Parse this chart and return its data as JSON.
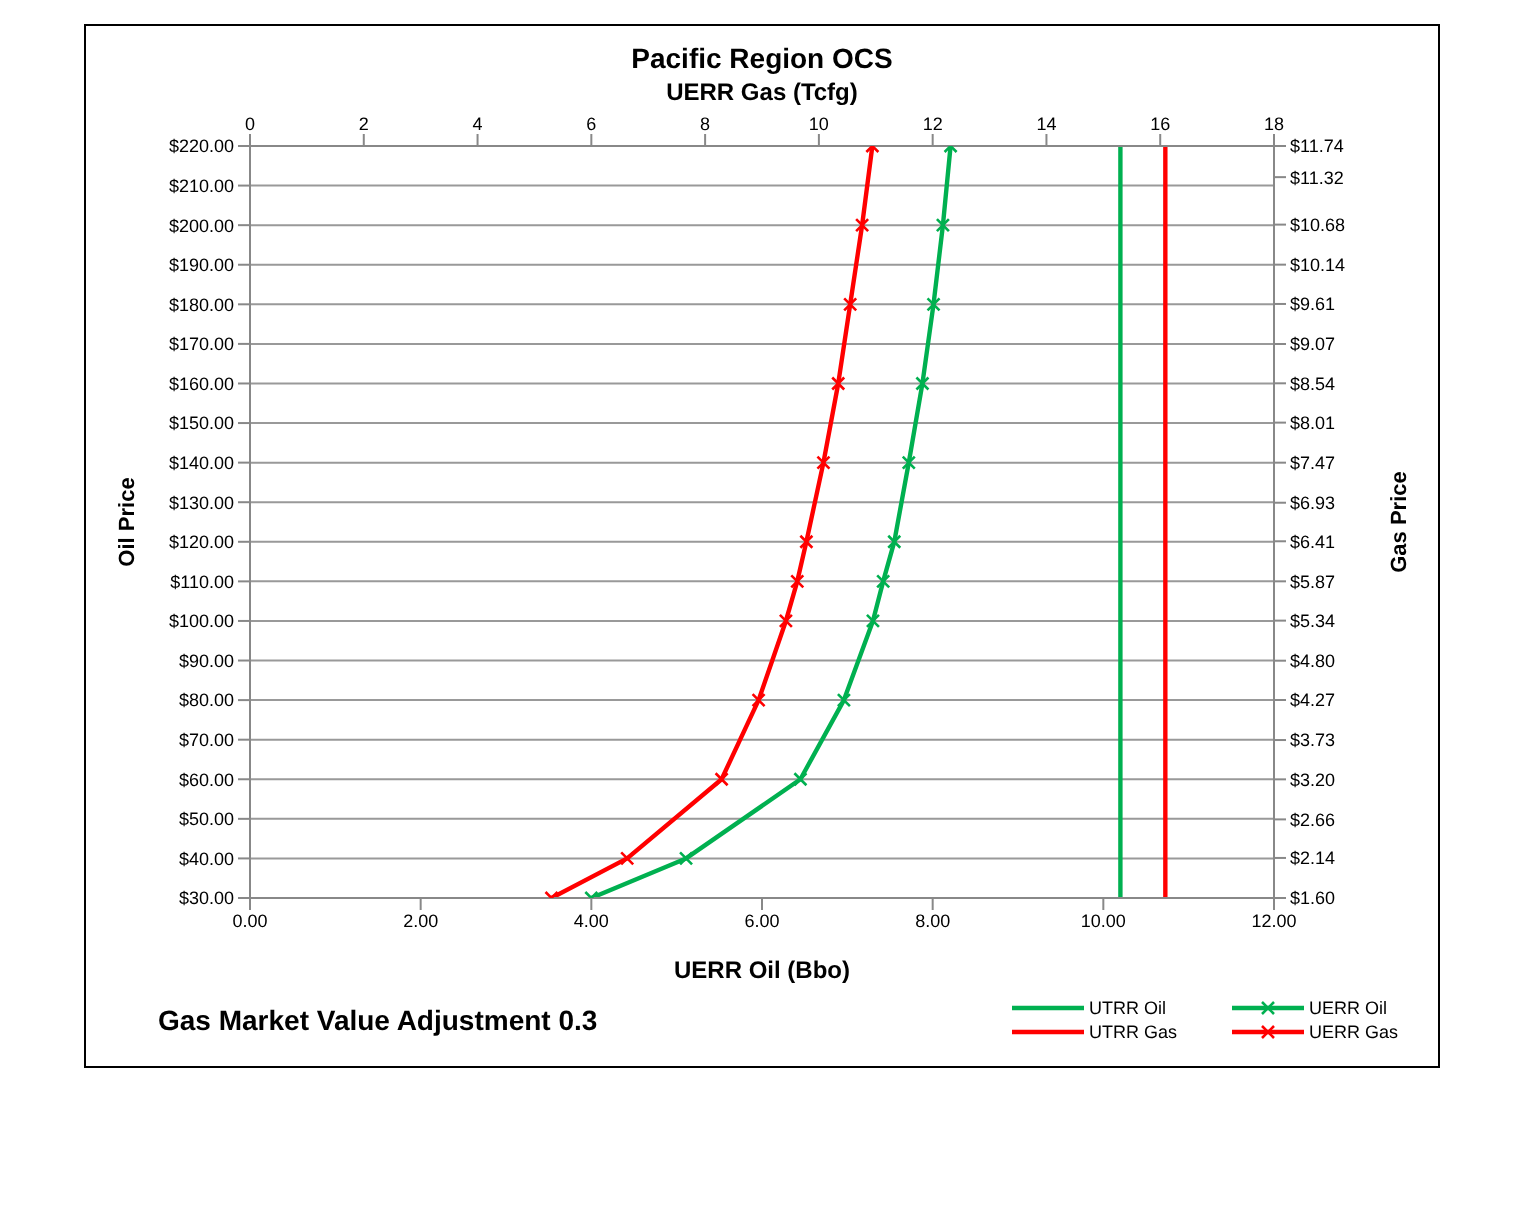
{
  "chart_data": {
    "type": "line",
    "title": "Pacific Region OCS",
    "xlabel": "UERR Oil (Bbo)",
    "x2label": "UERR Gas (Tcfg)",
    "ylabel": "Oil Price",
    "y2label": "Gas Price",
    "annotations": [
      "Gas Market Value Adjustment 0.3"
    ],
    "xlim": [
      0,
      12
    ],
    "xticks": [
      {
        "value": 0,
        "label": "0.00"
      },
      {
        "value": 2,
        "label": "2.00"
      },
      {
        "value": 4,
        "label": "4.00"
      },
      {
        "value": 6,
        "label": "6.00"
      },
      {
        "value": 8,
        "label": "8.00"
      },
      {
        "value": 10,
        "label": "10.00"
      },
      {
        "value": 12,
        "label": "12.00"
      }
    ],
    "x2lim": [
      0,
      18
    ],
    "x2ticks": [
      0,
      2,
      4,
      6,
      8,
      10,
      12,
      14,
      16,
      18
    ],
    "ylim": [
      30,
      220
    ],
    "yticks": [
      {
        "value": 30,
        "label": "$30.00"
      },
      {
        "value": 40,
        "label": "$40.00"
      },
      {
        "value": 50,
        "label": "$50.00"
      },
      {
        "value": 60,
        "label": "$60.00"
      },
      {
        "value": 70,
        "label": "$70.00"
      },
      {
        "value": 80,
        "label": "$80.00"
      },
      {
        "value": 90,
        "label": "$90.00"
      },
      {
        "value": 100,
        "label": "$100.00"
      },
      {
        "value": 110,
        "label": "$110.00"
      },
      {
        "value": 120,
        "label": "$120.00"
      },
      {
        "value": 130,
        "label": "$130.00"
      },
      {
        "value": 140,
        "label": "$140.00"
      },
      {
        "value": 150,
        "label": "$150.00"
      },
      {
        "value": 160,
        "label": "$160.00"
      },
      {
        "value": 170,
        "label": "$170.00"
      },
      {
        "value": 180,
        "label": "$180.00"
      },
      {
        "value": 190,
        "label": "$190.00"
      },
      {
        "value": 200,
        "label": "$200.00"
      },
      {
        "value": 210,
        "label": "$210.00"
      },
      {
        "value": 220,
        "label": "$220.00"
      }
    ],
    "y2lim": [
      1.6,
      11.74
    ],
    "y2ticks": [
      {
        "value": 1.6,
        "label": "$1.60"
      },
      {
        "value": 2.14,
        "label": "$2.14"
      },
      {
        "value": 2.66,
        "label": "$2.66"
      },
      {
        "value": 3.2,
        "label": "$3.20"
      },
      {
        "value": 3.73,
        "label": "$3.73"
      },
      {
        "value": 4.27,
        "label": "$4.27"
      },
      {
        "value": 4.8,
        "label": "$4.80"
      },
      {
        "value": 5.34,
        "label": "$5.34"
      },
      {
        "value": 5.87,
        "label": "$5.87"
      },
      {
        "value": 6.41,
        "label": "$6.41"
      },
      {
        "value": 6.93,
        "label": "$6.93"
      },
      {
        "value": 7.47,
        "label": "$7.47"
      },
      {
        "value": 8.01,
        "label": "$8.01"
      },
      {
        "value": 8.54,
        "label": "$8.54"
      },
      {
        "value": 9.07,
        "label": "$9.07"
      },
      {
        "value": 9.61,
        "label": "$9.61"
      },
      {
        "value": 10.14,
        "label": "$10.14"
      },
      {
        "value": 10.68,
        "label": "$10.68"
      },
      {
        "value": 11.32,
        "label": "$11.32"
      },
      {
        "value": 11.74,
        "label": "$11.74"
      }
    ],
    "grid": "y",
    "legend": "bottom right",
    "line_style": "solid",
    "series": [
      {
        "name": "UTRR Oil",
        "color": "#00b050",
        "marker": "none",
        "x": [
          10.2,
          10.2
        ],
        "values": [
          30,
          220
        ]
      },
      {
        "name": "UERR Oil",
        "color": "#00b050",
        "marker": "cross",
        "x": [
          4.0,
          5.11,
          6.45,
          6.96,
          7.3,
          7.42,
          7.55,
          7.72,
          7.88,
          8.01,
          8.12,
          8.21
        ],
        "values": [
          30,
          40,
          60,
          80,
          100,
          110,
          120,
          140,
          160,
          180,
          200,
          220
        ]
      },
      {
        "name": "UTRR Gas",
        "color": "#ff0000",
        "marker": "none",
        "axis": "x2",
        "x": [
          16.09,
          16.09
        ],
        "values": [
          30,
          220
        ]
      },
      {
        "name": "UERR Gas",
        "color": "#ff0000",
        "marker": "cross",
        "axis": "x2",
        "x": [
          5.3,
          6.63,
          8.29,
          8.94,
          9.42,
          9.62,
          9.78,
          10.08,
          10.34,
          10.55,
          10.76,
          10.94
        ],
        "values": [
          30,
          40,
          60,
          80,
          100,
          110,
          120,
          140,
          160,
          180,
          200,
          220
        ]
      }
    ]
  }
}
